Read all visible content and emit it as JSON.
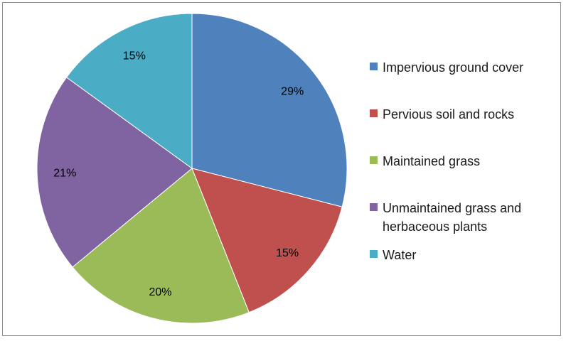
{
  "chart_data": {
    "type": "pie",
    "title": "",
    "legend_position": "right",
    "start_angle_deg": 0,
    "direction": "clockwise",
    "slices": [
      {
        "label": "Impervious ground cover",
        "value": 29,
        "display": "29%",
        "color": "#4f81bd"
      },
      {
        "label": "Pervious soil and rocks",
        "value": 15,
        "display": "15%",
        "color": "#c0504d"
      },
      {
        "label": "Maintained grass",
        "value": 20,
        "display": "20%",
        "color": "#9bbb59"
      },
      {
        "label": "Unmaintained grass and herbaceous plants",
        "value": 21,
        "display": "21%",
        "color": "#8064a2"
      },
      {
        "label": "Water",
        "value": 15,
        "display": "15%",
        "color": "#4bacc6"
      }
    ]
  }
}
